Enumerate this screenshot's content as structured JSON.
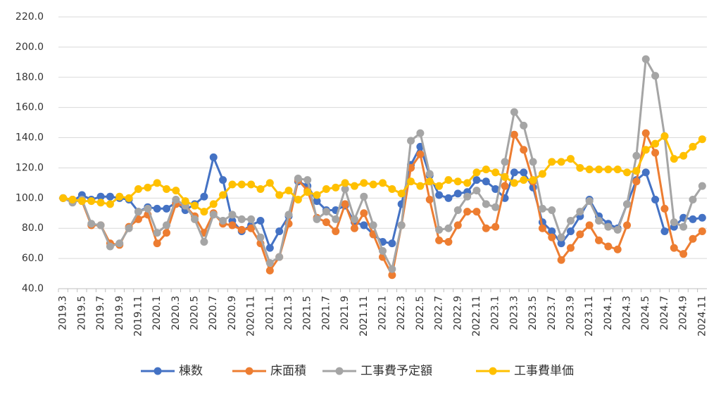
{
  "chart_data": {
    "type": "line",
    "categories": [
      "2019.3",
      null,
      "2019.5",
      null,
      "2019.7",
      null,
      "2019.9",
      null,
      "2019.11",
      null,
      "2020.1",
      null,
      "2020.3",
      null,
      "2020.5",
      null,
      "2020.7",
      null,
      "2020.9",
      null,
      "2020.11",
      null,
      "2021.1",
      null,
      "2021.3",
      null,
      "2021.5",
      null,
      "2021.7",
      null,
      "2021.9",
      null,
      "2021.11",
      null,
      "2022.1",
      null,
      "2022.3",
      null,
      "2022.5",
      null,
      "2022.7",
      null,
      "2022.9",
      null,
      "2022.11",
      null,
      "2023.1",
      null,
      "2023.3",
      null,
      "2023.5",
      null,
      "2023.7",
      null,
      "2023.9",
      null,
      "2023.11",
      null,
      "2024.1",
      null,
      "2024.3",
      null,
      "2024.5",
      null,
      "2024.7",
      null,
      "2024.9",
      null,
      "2024.11"
    ],
    "series": [
      {
        "name": "棟数",
        "color": "#4472c4",
        "values": [
          100,
          98,
          102,
          99,
          101,
          101,
          100,
          99,
          91,
          94,
          93,
          93,
          97,
          92,
          96,
          101,
          127,
          112,
          85,
          78,
          82,
          85,
          67,
          78,
          88,
          111,
          108,
          98,
          92,
          92,
          95,
          84,
          82,
          76,
          71,
          70,
          96,
          122,
          134,
          115,
          102,
          100,
          103,
          104,
          112,
          111,
          106,
          100,
          117,
          117,
          107,
          84,
          78,
          70,
          78,
          88,
          99,
          88,
          83,
          80,
          96,
          112,
          117,
          99,
          78,
          81,
          87,
          86,
          87
        ]
      },
      {
        "name": "床面積",
        "color": "#ed7d31",
        "values": [
          100,
          99,
          98,
          82,
          82,
          70,
          69,
          81,
          86,
          89,
          70,
          77,
          96,
          95,
          88,
          77,
          90,
          83,
          82,
          79,
          80,
          70,
          52,
          61,
          83,
          112,
          105,
          87,
          84,
          78,
          96,
          80,
          90,
          76,
          61,
          49,
          82,
          120,
          129,
          99,
          72,
          71,
          82,
          91,
          91,
          80,
          81,
          108,
          142,
          132,
          111,
          80,
          74,
          59,
          67,
          76,
          82,
          72,
          68,
          66,
          82,
          111,
          143,
          130,
          93,
          67,
          63,
          73,
          78
        ]
      },
      {
        "name": "工事費予定額",
        "color": "#a5a5a5",
        "values": [
          100,
          97,
          99,
          83,
          82,
          68,
          70,
          80,
          91,
          93,
          77,
          82,
          99,
          95,
          86,
          71,
          89,
          85,
          89,
          86,
          86,
          74,
          57,
          61,
          89,
          113,
          112,
          86,
          91,
          86,
          106,
          86,
          101,
          82,
          65,
          53,
          82,
          138,
          143,
          116,
          79,
          80,
          92,
          101,
          105,
          96,
          94,
          124,
          157,
          148,
          124,
          93,
          92,
          74,
          85,
          91,
          98,
          85,
          81,
          79,
          96,
          128,
          192,
          181,
          141,
          84,
          81,
          99,
          108
        ]
      },
      {
        "name": "工事費単価",
        "color": "#ffc000",
        "values": [
          100,
          99,
          98,
          98,
          97,
          96,
          101,
          100,
          106,
          107,
          110,
          106,
          105,
          98,
          95,
          91,
          96,
          102,
          109,
          109,
          109,
          106,
          110,
          102,
          105,
          99,
          104,
          102,
          106,
          107,
          110,
          108,
          110,
          109,
          110,
          106,
          103,
          111,
          108,
          111,
          108,
          112,
          111,
          110,
          117,
          119,
          117,
          114,
          110,
          112,
          112,
          116,
          124,
          124,
          126,
          120,
          119,
          119,
          119,
          119,
          117,
          118,
          132,
          136,
          141,
          126,
          128,
          134,
          139
        ]
      }
    ],
    "ylim": [
      40,
      220
    ],
    "yticks": [
      {
        "value": 40,
        "label": "40.0"
      },
      {
        "value": 60,
        "label": "60.0"
      },
      {
        "value": 80,
        "label": "80.0"
      },
      {
        "value": 100,
        "label": "100.0"
      },
      {
        "value": 120,
        "label": "120.0"
      },
      {
        "value": 140,
        "label": "140.0"
      },
      {
        "value": 160,
        "label": "160.0"
      },
      {
        "value": 180,
        "label": "180.0"
      },
      {
        "value": 200,
        "label": "200.0"
      },
      {
        "value": 220,
        "label": "220.0"
      }
    ],
    "grid": true,
    "legend": "bottom"
  }
}
